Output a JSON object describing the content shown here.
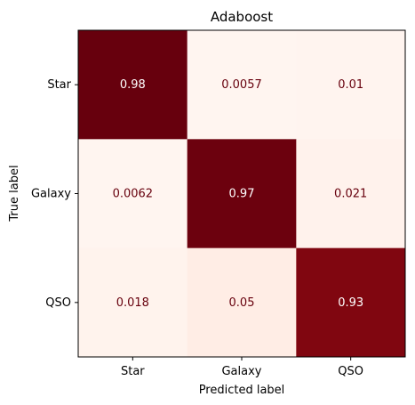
{
  "chart_data": {
    "type": "heatmap",
    "title": "Adaboost",
    "xlabel": "Predicted label",
    "ylabel": "True label",
    "x_categories": [
      "Star",
      "Galaxy",
      "QSO"
    ],
    "y_categories": [
      "Star",
      "Galaxy",
      "QSO"
    ],
    "values": [
      [
        0.98,
        0.0057,
        0.01
      ],
      [
        0.0062,
        0.97,
        0.021
      ],
      [
        0.018,
        0.05,
        0.93
      ]
    ],
    "value_labels": [
      [
        "0.98",
        "0.0057",
        "0.01"
      ],
      [
        "0.0062",
        "0.97",
        "0.021"
      ],
      [
        "0.018",
        "0.05",
        "0.93"
      ]
    ],
    "colormap": "Reds",
    "color_low": "#fff5f0",
    "color_high": "#67000d",
    "text_dark_color": "#67000d",
    "text_light_color": "#ffffff",
    "vmin": 0.0057,
    "vmax": 0.98,
    "grid": false
  }
}
